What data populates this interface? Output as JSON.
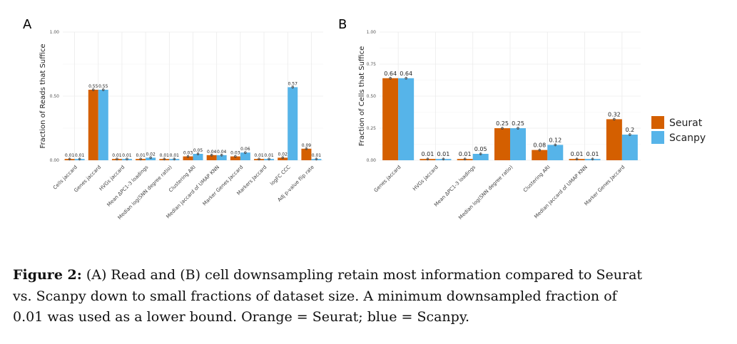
{
  "colors": {
    "seurat": "#d45f00",
    "scanpy": "#56b4e9",
    "grid": "#ebebeb",
    "point": "#444444"
  },
  "legend": {
    "items": [
      {
        "label": "Seurat",
        "color": "#d45f00"
      },
      {
        "label": "Scanpy",
        "color": "#56b4e9"
      }
    ]
  },
  "caption": {
    "label": "Figure 2:",
    "line1": "(A) Read and (B) cell downsampling retain most information compared to Seurat",
    "line2": "vs. Scanpy down to small fractions of dataset size. A minimum downsampled fraction of",
    "line3": "0.01 was used as a lower bound. Orange = Seurat; blue = Scanpy."
  },
  "chart_data": [
    {
      "panel": "A",
      "type": "bar",
      "ylabel": "Fraction of Reads that Suffice",
      "ylim": [
        0,
        1
      ],
      "yticks": [
        "0.00",
        "0.50",
        "1.00"
      ],
      "grid": true,
      "categories": [
        "Cells jaccard",
        "Genes jaccard",
        "HVGs jaccard",
        "Mean ΔPC1-3 loadings",
        "Median log(SNN degree ratio)",
        "Clustering ARI",
        "Median jaccard of UMAP KNN",
        "Marker Genes Jaccard",
        "Markers Jaccard",
        "logFC CCC",
        "Adj p-value flip rate"
      ],
      "series": [
        {
          "name": "Seurat",
          "values": [
            0.01,
            0.55,
            0.01,
            0.01,
            0.01,
            0.03,
            0.04,
            0.03,
            0.01,
            0.02,
            0.09
          ],
          "labels": [
            "0.01",
            "0.55",
            "0.01",
            "0.01",
            "0.01",
            "0.03",
            "0.04",
            "0.03",
            "0.01",
            "0.02",
            "0.09"
          ]
        },
        {
          "name": "Scanpy",
          "values": [
            0.01,
            0.55,
            0.01,
            0.02,
            0.01,
            0.05,
            0.04,
            0.06,
            0.01,
            0.57,
            0.01
          ],
          "labels": [
            "0.01",
            "0.55",
            "0.01",
            "0.02",
            "0.01",
            "0.05",
            "0.04",
            "0.06",
            "0.01",
            "0.57",
            "0.01"
          ]
        }
      ]
    },
    {
      "panel": "B",
      "type": "bar",
      "ylabel": "Fraction of Cells that Suffice",
      "ylim": [
        0,
        1
      ],
      "yticks": [
        "0.00",
        "0.25",
        "0.50",
        "0.75",
        "1.00"
      ],
      "grid": true,
      "categories": [
        "Genes jaccard",
        "HVGs jaccard",
        "Mean ΔPC1-3 loadings",
        "Median log(SNN degree ratio)",
        "Clustering ARI",
        "Median jaccard of UMAP KNN",
        "Marker Genes Jaccard"
      ],
      "series": [
        {
          "name": "Seurat",
          "values": [
            0.64,
            0.01,
            0.01,
            0.25,
            0.08,
            0.01,
            0.32
          ],
          "labels": [
            "0.64",
            "0.01",
            "0.01",
            "0.25",
            "0.08",
            "0.01",
            "0.32"
          ]
        },
        {
          "name": "Scanpy",
          "values": [
            0.64,
            0.01,
            0.05,
            0.25,
            0.12,
            0.01,
            0.2
          ],
          "labels": [
            "0.64",
            "0.01",
            "0.05",
            "0.25",
            "0.12",
            "0.01",
            "0.2"
          ]
        }
      ]
    }
  ]
}
